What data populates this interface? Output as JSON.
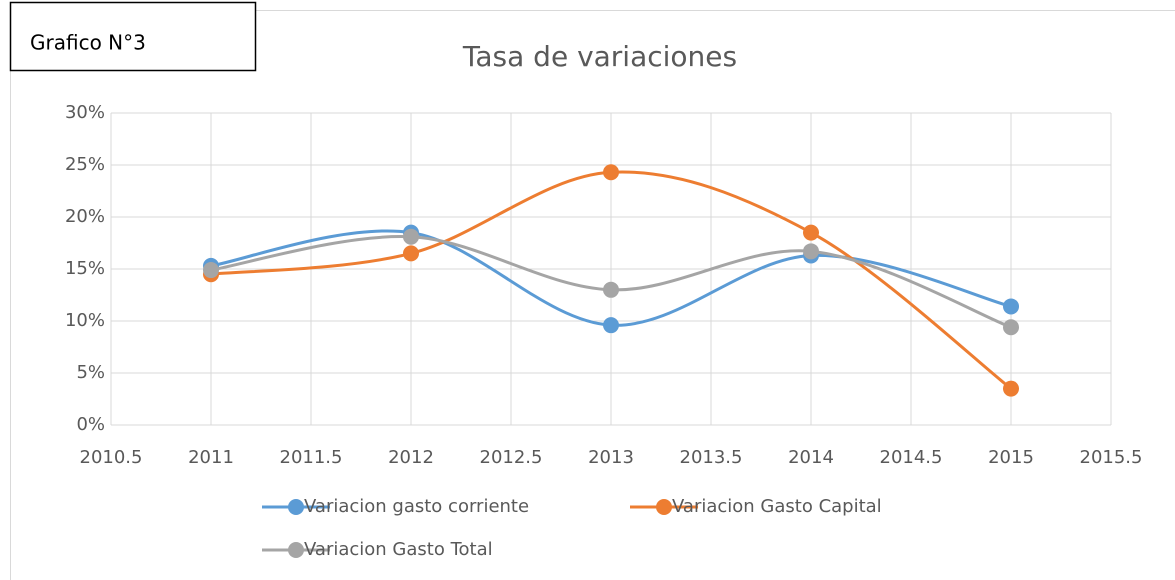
{
  "chart_data": {
    "type": "scatter",
    "annotation": "Grafico N°3",
    "title": "Tasa de variaciones",
    "smooth": true,
    "grid": true,
    "legend": "bottom",
    "x": [
      2011,
      2012,
      2013,
      2014,
      2015
    ],
    "xlim": [
      2010.5,
      2015.5
    ],
    "xticks": [
      2010.5,
      2011,
      2011.5,
      2012,
      2012.5,
      2013,
      2013.5,
      2014,
      2014.5,
      2015,
      2015.5
    ],
    "ylim": [
      0,
      30
    ],
    "yticks": [
      {
        "value": 0,
        "label": "0%"
      },
      {
        "value": 5,
        "label": "5%"
      },
      {
        "value": 10,
        "label": "10%"
      },
      {
        "value": 15,
        "label": "15%"
      },
      {
        "value": 20,
        "label": "20%"
      },
      {
        "value": 25,
        "label": "25%"
      },
      {
        "value": 30,
        "label": "30%"
      }
    ],
    "series": [
      {
        "name": "Variacion gasto corriente",
        "color": "#5b9bd5",
        "values": [
          15.3,
          18.5,
          9.6,
          16.3,
          11.4
        ]
      },
      {
        "name": "Variacion Gasto Capital",
        "color": "#ed7d31",
        "values": [
          14.5,
          16.5,
          24.3,
          18.5,
          3.5
        ]
      },
      {
        "name": "Variacion Gasto Total",
        "color": "#a5a5a5",
        "values": [
          14.9,
          18.1,
          13.0,
          16.7,
          9.4
        ]
      }
    ]
  }
}
